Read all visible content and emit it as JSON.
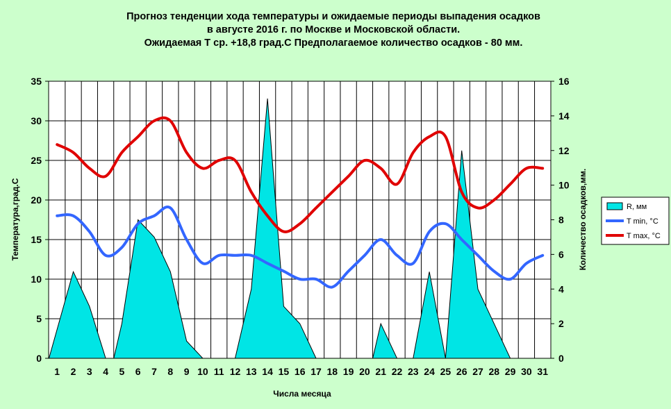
{
  "chart_data": {
    "type": "line",
    "title_lines": [
      "Прогноз тенденции хода температуры и ожидаемые периоды выпадения осадков",
      "в августе 2016 г. по Москве и Московской области.",
      "Ожидаемая  Т ср. +18,8 град.С Предполагаемое количество осадков - 80 мм."
    ],
    "xlabel": "Числа месяца",
    "ylabel_left": "Температура,град.С",
    "ylabel_right": "Количество осадков,мм.",
    "x": [
      1,
      2,
      3,
      4,
      5,
      6,
      7,
      8,
      9,
      10,
      11,
      12,
      13,
      14,
      15,
      16,
      17,
      18,
      19,
      20,
      21,
      22,
      23,
      24,
      25,
      26,
      27,
      28,
      29,
      30,
      31
    ],
    "left_axis": {
      "ylim": [
        0,
        35
      ],
      "ticks": [
        0,
        5,
        10,
        15,
        20,
        25,
        30,
        35
      ]
    },
    "right_axis": {
      "ylim": [
        0,
        16
      ],
      "ticks": [
        0,
        2,
        4,
        6,
        8,
        10,
        12,
        14,
        16
      ]
    },
    "series": [
      {
        "name": "R, мм",
        "kind": "area",
        "axis": "right",
        "color": "#00e5e5",
        "points": [
          [
            0.5,
            0
          ],
          [
            2,
            5
          ],
          [
            3,
            3
          ],
          [
            4,
            0
          ],
          [
            4.5,
            0
          ],
          [
            5,
            2
          ],
          [
            6,
            8
          ],
          [
            7,
            7
          ],
          [
            8,
            5
          ],
          [
            9,
            1
          ],
          [
            10,
            0
          ],
          [
            12,
            0
          ],
          [
            13,
            4
          ],
          [
            14,
            15
          ],
          [
            15,
            3
          ],
          [
            16,
            2
          ],
          [
            17,
            0
          ],
          [
            20.5,
            0
          ],
          [
            21,
            2
          ],
          [
            22,
            0
          ],
          [
            23,
            0
          ],
          [
            24,
            5
          ],
          [
            25,
            0
          ],
          [
            26,
            12
          ],
          [
            27,
            4
          ],
          [
            28,
            2
          ],
          [
            29,
            0
          ]
        ]
      },
      {
        "name": "T min, °С",
        "kind": "line",
        "axis": "left",
        "color": "#3366ff",
        "values": [
          18,
          18,
          16,
          13,
          14,
          17,
          18,
          19,
          15,
          12,
          13,
          13,
          13,
          12,
          11,
          10,
          10,
          9,
          11,
          13,
          15,
          13,
          12,
          16,
          17,
          15,
          13,
          11,
          10,
          12,
          13
        ]
      },
      {
        "name": "T max, °С",
        "kind": "line",
        "axis": "left",
        "color": "#e00000",
        "values": [
          27,
          26,
          24,
          23,
          26,
          28,
          30,
          30,
          26,
          24,
          25,
          25,
          21,
          18,
          16,
          17,
          19,
          21,
          23,
          25,
          24,
          22,
          26,
          28,
          28,
          21,
          19,
          20,
          22,
          24,
          24
        ]
      }
    ],
    "legend": [
      {
        "label": "R, мм",
        "swatch": "area",
        "color": "#00e5e5"
      },
      {
        "label": "T min, °С",
        "swatch": "line",
        "color": "#3366ff"
      },
      {
        "label": "T max, °С",
        "swatch": "line",
        "color": "#e00000"
      }
    ],
    "legend_position": "right"
  }
}
